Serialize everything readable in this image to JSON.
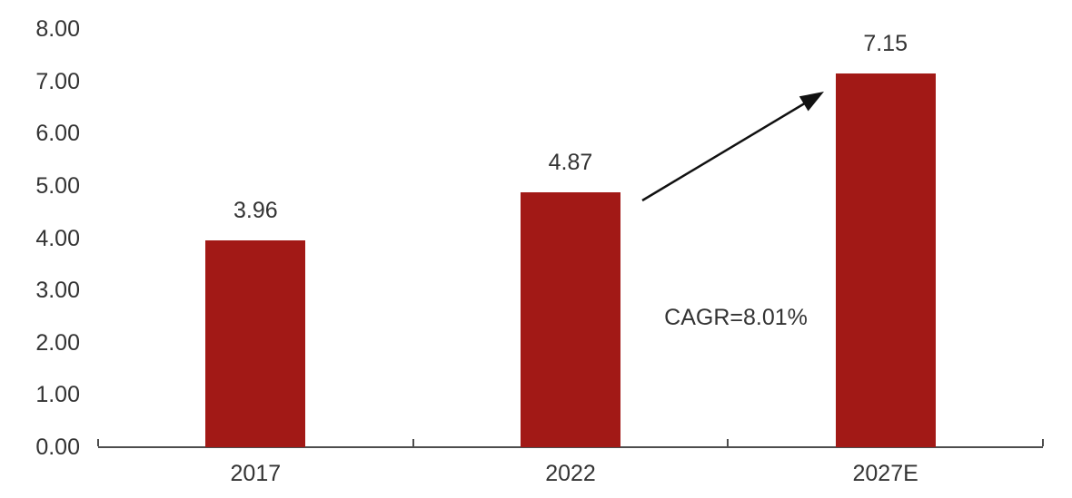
{
  "chart_data": {
    "type": "bar",
    "categories": [
      "2017",
      "2022",
      "2027E"
    ],
    "values": [
      3.96,
      4.87,
      7.15
    ],
    "value_labels": [
      "3.96",
      "4.87",
      "7.15"
    ],
    "y_ticks": [
      "0.00",
      "1.00",
      "2.00",
      "3.00",
      "4.00",
      "5.00",
      "6.00",
      "7.00",
      "8.00"
    ],
    "ylim": [
      0,
      8
    ],
    "title": "",
    "xlabel": "",
    "ylabel": "",
    "annotation": "CAGR=8.01%",
    "annotation_arrow": "from top of 2022 bar to top of 2027E bar",
    "bar_color": "#A21916",
    "axis_color": "#4d4d4d",
    "text_color": "#333333",
    "legend": "none",
    "grid": "off"
  }
}
